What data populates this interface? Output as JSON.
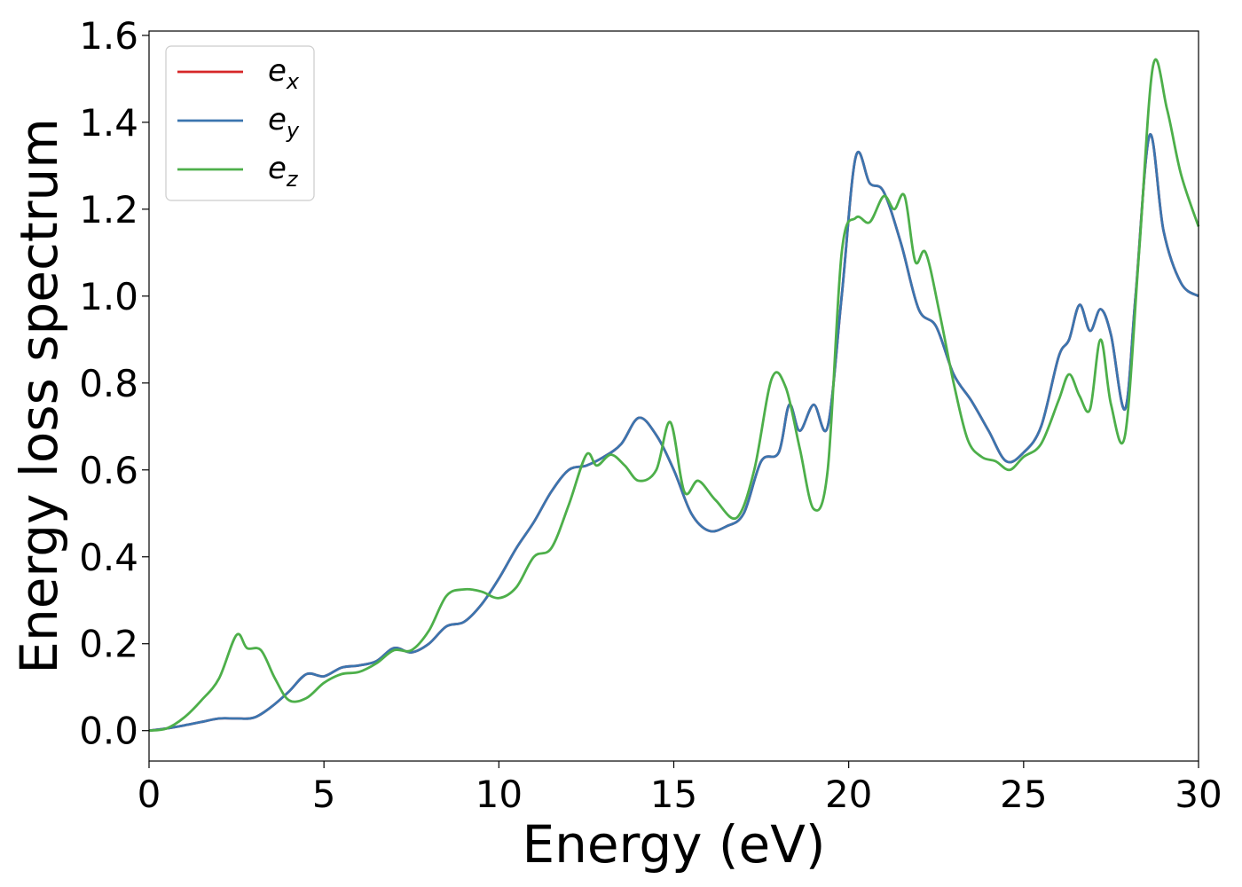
{
  "chart_data": {
    "type": "line",
    "title": "",
    "xlabel": "Energy (eV)",
    "ylabel": "Energy loss spectrum",
    "xlim": [
      0,
      30
    ],
    "ylim": [
      -0.07,
      1.61
    ],
    "xticks": [
      0,
      5,
      10,
      15,
      20,
      25,
      30
    ],
    "yticks": [
      0.0,
      0.2,
      0.4,
      0.6,
      0.8,
      1.0,
      1.2,
      1.4,
      1.6
    ],
    "xtick_labels": [
      "0",
      "5",
      "10",
      "15",
      "20",
      "25",
      "30"
    ],
    "ytick_labels": [
      "0.0",
      "0.2",
      "0.4",
      "0.6",
      "0.8",
      "1.0",
      "1.2",
      "1.4",
      "1.6"
    ],
    "grid": false,
    "legend_position": "top-left",
    "series": [
      {
        "name": "e_x",
        "label_base": "e",
        "label_sub": "x",
        "color": "#d62728",
        "x": [
          0,
          0.5,
          1,
          1.5,
          2,
          2.5,
          3,
          3.5,
          4,
          4.5,
          5,
          5.5,
          6,
          6.5,
          7,
          7.5,
          8,
          8.5,
          9,
          9.5,
          10,
          10.5,
          11,
          11.5,
          12,
          12.5,
          13,
          13.5,
          14,
          14.5,
          15,
          15.5,
          16,
          16.5,
          17,
          17.5,
          18,
          18.3,
          18.6,
          19,
          19.4,
          19.8,
          20.2,
          20.6,
          21,
          21.5,
          22,
          22.5,
          23,
          23.5,
          24,
          24.5,
          25,
          25.5,
          26,
          26.3,
          26.6,
          26.9,
          27.2,
          27.5,
          27.9,
          28.2,
          28.6,
          29,
          29.5,
          30
        ],
        "y": [
          0,
          0.005,
          0.012,
          0.02,
          0.028,
          0.028,
          0.03,
          0.055,
          0.09,
          0.13,
          0.125,
          0.145,
          0.15,
          0.16,
          0.19,
          0.18,
          0.2,
          0.24,
          0.25,
          0.29,
          0.35,
          0.42,
          0.48,
          0.55,
          0.6,
          0.61,
          0.63,
          0.66,
          0.72,
          0.68,
          0.6,
          0.5,
          0.46,
          0.47,
          0.5,
          0.62,
          0.64,
          0.75,
          0.69,
          0.75,
          0.7,
          1.0,
          1.32,
          1.26,
          1.24,
          1.12,
          0.97,
          0.93,
          0.82,
          0.76,
          0.69,
          0.62,
          0.64,
          0.7,
          0.86,
          0.9,
          0.98,
          0.92,
          0.97,
          0.91,
          0.74,
          1.0,
          1.37,
          1.15,
          1.03,
          1.0
        ]
      },
      {
        "name": "e_y",
        "label_base": "e",
        "label_sub": "y",
        "color": "#3b75af",
        "x": [
          0,
          0.5,
          1,
          1.5,
          2,
          2.5,
          3,
          3.5,
          4,
          4.5,
          5,
          5.5,
          6,
          6.5,
          7,
          7.5,
          8,
          8.5,
          9,
          9.5,
          10,
          10.5,
          11,
          11.5,
          12,
          12.5,
          13,
          13.5,
          14,
          14.5,
          15,
          15.5,
          16,
          16.5,
          17,
          17.5,
          18,
          18.3,
          18.6,
          19,
          19.4,
          19.8,
          20.2,
          20.6,
          21,
          21.5,
          22,
          22.5,
          23,
          23.5,
          24,
          24.5,
          25,
          25.5,
          26,
          26.3,
          26.6,
          26.9,
          27.2,
          27.5,
          27.9,
          28.2,
          28.6,
          29,
          29.5,
          30
        ],
        "y": [
          0,
          0.005,
          0.012,
          0.02,
          0.028,
          0.028,
          0.03,
          0.055,
          0.09,
          0.13,
          0.125,
          0.145,
          0.15,
          0.16,
          0.19,
          0.18,
          0.2,
          0.24,
          0.25,
          0.29,
          0.35,
          0.42,
          0.48,
          0.55,
          0.6,
          0.61,
          0.63,
          0.66,
          0.72,
          0.68,
          0.6,
          0.5,
          0.46,
          0.47,
          0.5,
          0.62,
          0.64,
          0.75,
          0.69,
          0.75,
          0.7,
          1.0,
          1.32,
          1.26,
          1.24,
          1.12,
          0.97,
          0.93,
          0.82,
          0.76,
          0.69,
          0.62,
          0.64,
          0.7,
          0.86,
          0.9,
          0.98,
          0.92,
          0.97,
          0.91,
          0.74,
          1.0,
          1.37,
          1.15,
          1.03,
          1.0
        ]
      },
      {
        "name": "e_z",
        "label_base": "e",
        "label_sub": "z",
        "color": "#4daf4a",
        "x": [
          0,
          0.5,
          1,
          1.5,
          2,
          2.5,
          2.8,
          3.2,
          3.6,
          4,
          4.5,
          5,
          5.5,
          6,
          6.5,
          7,
          7.5,
          8,
          8.5,
          9,
          9.5,
          10,
          10.5,
          11,
          11.5,
          12,
          12.5,
          12.8,
          13.2,
          13.6,
          14,
          14.5,
          14.9,
          15.3,
          15.7,
          16.2,
          16.8,
          17.3,
          17.8,
          18.2,
          18.6,
          19,
          19.4,
          19.8,
          20.2,
          20.6,
          21,
          21.3,
          21.6,
          21.9,
          22.2,
          22.6,
          23,
          23.4,
          23.8,
          24.2,
          24.6,
          25,
          25.5,
          26,
          26.3,
          26.6,
          26.9,
          27.2,
          27.5,
          27.9,
          28.3,
          28.7,
          29.1,
          29.5,
          30
        ],
        "y": [
          0,
          0.005,
          0.03,
          0.07,
          0.12,
          0.22,
          0.19,
          0.185,
          0.12,
          0.07,
          0.075,
          0.11,
          0.13,
          0.135,
          0.155,
          0.185,
          0.185,
          0.23,
          0.31,
          0.325,
          0.32,
          0.305,
          0.33,
          0.4,
          0.42,
          0.52,
          0.635,
          0.61,
          0.635,
          0.61,
          0.575,
          0.6,
          0.71,
          0.55,
          0.575,
          0.53,
          0.49,
          0.6,
          0.81,
          0.79,
          0.65,
          0.51,
          0.6,
          1.1,
          1.18,
          1.17,
          1.23,
          1.2,
          1.23,
          1.08,
          1.1,
          0.96,
          0.8,
          0.67,
          0.63,
          0.62,
          0.6,
          0.63,
          0.66,
          0.76,
          0.82,
          0.77,
          0.74,
          0.9,
          0.75,
          0.68,
          1.1,
          1.53,
          1.43,
          1.28,
          1.16
        ]
      }
    ]
  }
}
